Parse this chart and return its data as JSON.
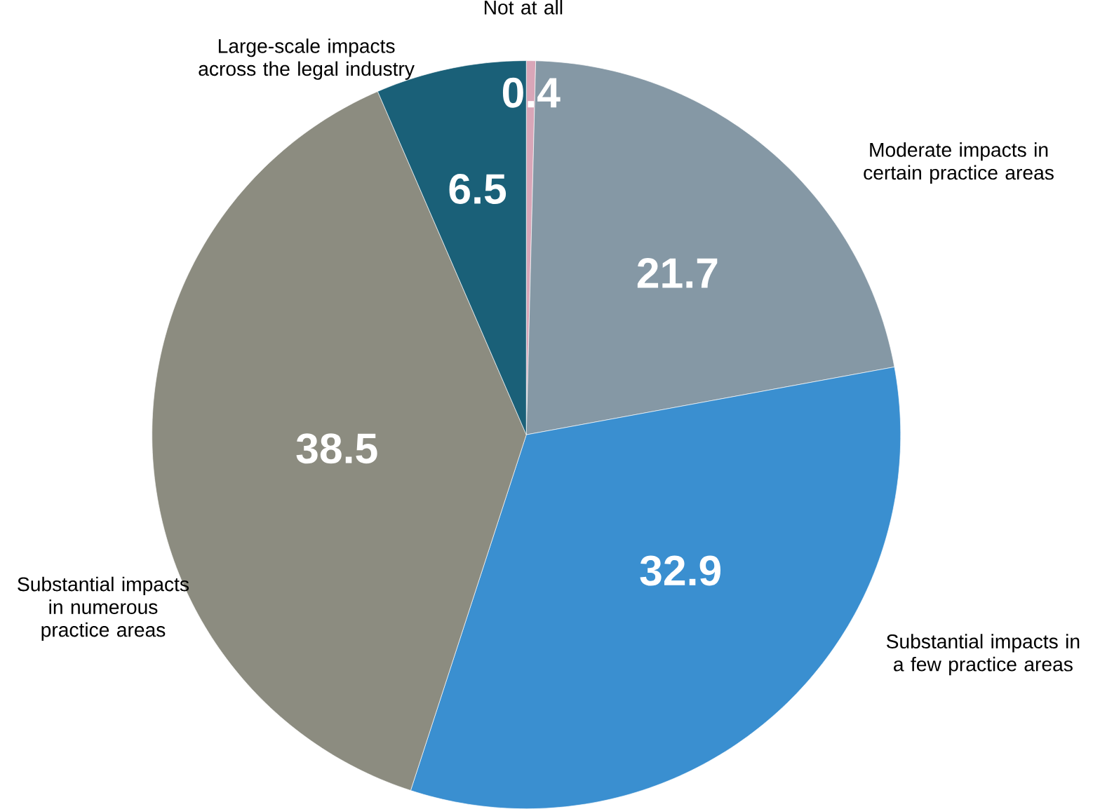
{
  "chart_data": {
    "type": "pie",
    "categories": [
      "Not at all",
      "Moderate impacts in certain practice areas",
      "Substantial impacts in a few practice areas",
      "Substantial impacts in numerous practice areas",
      "Large-scale impacts across the legal industry"
    ],
    "values": [
      0.4,
      21.7,
      32.9,
      38.5,
      6.5
    ],
    "colors": [
      "#d9a6b8",
      "#8598a5",
      "#3a8fd0",
      "#8c8c80",
      "#1a6078"
    ],
    "data_labels": true
  }
}
